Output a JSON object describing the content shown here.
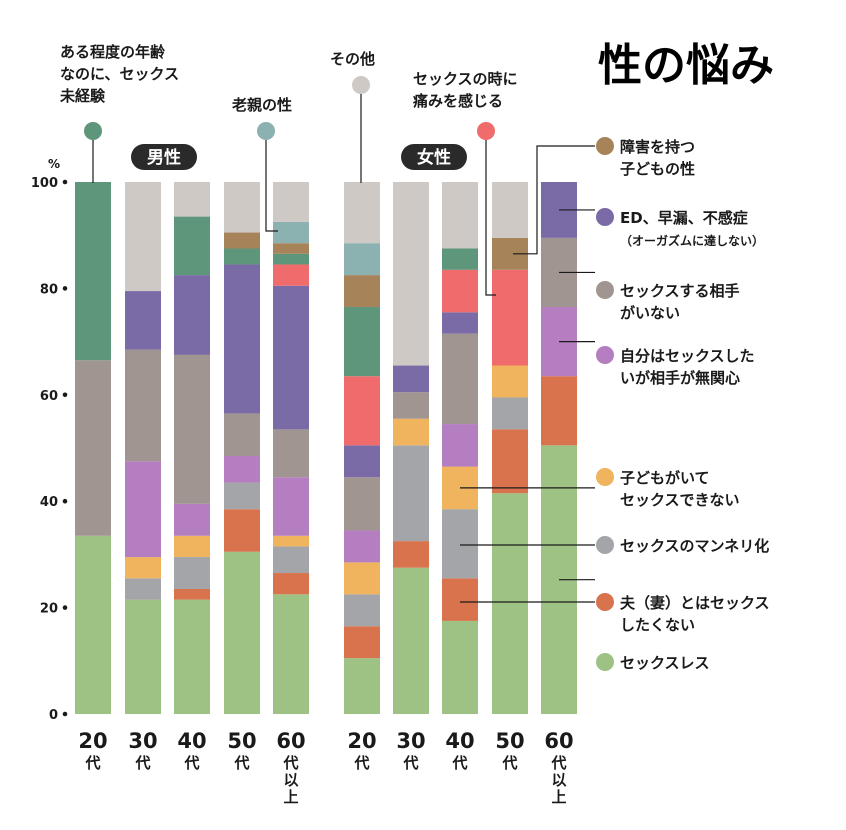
{
  "chart_data": {
    "type": "stacked-bar",
    "title": "性の悩み",
    "ylabel": "%",
    "ylim": [
      0,
      100
    ],
    "yticks": [
      "0",
      "20",
      "40",
      "60",
      "80",
      "100"
    ],
    "groups": [
      {
        "name": "男性",
        "categories": [
          "20代",
          "30代",
          "40代",
          "50代",
          "60代以上"
        ]
      },
      {
        "name": "女性",
        "categories": [
          "20代",
          "30代",
          "40代",
          "50代",
          "60代以上"
        ]
      }
    ],
    "category_labels": [
      {
        "top": "20",
        "bottom": "代"
      },
      {
        "top": "30",
        "bottom": "代"
      },
      {
        "top": "40",
        "bottom": "代"
      },
      {
        "top": "50",
        "bottom": "代"
      },
      {
        "top": "60",
        "bottom": "代以上"
      },
      {
        "top": "20",
        "bottom": "代"
      },
      {
        "top": "30",
        "bottom": "代"
      },
      {
        "top": "40",
        "bottom": "代"
      },
      {
        "top": "50",
        "bottom": "代"
      },
      {
        "top": "60",
        "bottom": "代以上"
      }
    ],
    "series": [
      {
        "name": "セックスレス",
        "color": "#9ec184",
        "values": [
          33.5,
          21.5,
          21.5,
          30.5,
          22.5,
          10.5,
          27.5,
          17.5,
          41.5,
          50.5
        ]
      },
      {
        "name": "夫(妻)とはセックスしたくない",
        "color": "#d8734e",
        "values": [
          0,
          0,
          2,
          8,
          4,
          6,
          5,
          8,
          12,
          13
        ]
      },
      {
        "name": "セックスのマンネリ化",
        "color": "#a3a5a8",
        "values": [
          0,
          4,
          6,
          5,
          5,
          6,
          18,
          13,
          6,
          0
        ]
      },
      {
        "name": "子どもがいてセックスできない",
        "color": "#f0b35e",
        "values": [
          0,
          4,
          4,
          0,
          2,
          6,
          5,
          8,
          6,
          0
        ]
      },
      {
        "name": "自分はセックスしたいが相手が無関心",
        "color": "#b47ec0",
        "values": [
          0,
          18,
          6,
          5,
          11,
          6,
          0,
          8,
          0,
          13
        ]
      },
      {
        "name": "セックスする相手がいない",
        "color": "#a09590",
        "values": [
          33,
          21,
          28,
          8,
          9,
          10,
          5,
          17,
          0,
          13
        ]
      },
      {
        "name": "ED、早漏、不感症(オーガズムに達しない)",
        "color": "#7a6aa6",
        "values": [
          0,
          11,
          15,
          28,
          27,
          6,
          5,
          4,
          0,
          10.5
        ]
      },
      {
        "name": "セックスの時に痛みを感じる",
        "color": "#f06b6b",
        "values": [
          0,
          0,
          0,
          0,
          4,
          13,
          0,
          8,
          18,
          0
        ]
      },
      {
        "name": "ある程度の年齢なのに、セックス未経験",
        "color": "#5d967b",
        "values": [
          33.5,
          0,
          11,
          3,
          2,
          13,
          0,
          4,
          0,
          0
        ]
      },
      {
        "name": "障害を持つ子どもの性",
        "color": "#a7835a",
        "values": [
          0,
          0,
          0,
          3,
          2,
          6,
          0,
          0,
          6,
          0
        ]
      },
      {
        "name": "老親の性",
        "color": "#8bb1b0",
        "values": [
          0,
          0,
          0,
          0,
          4,
          6,
          0,
          0,
          0,
          0
        ]
      },
      {
        "name": "その他",
        "color": "#cfc9c6",
        "values": [
          0,
          20.5,
          6.5,
          9.5,
          7.5,
          11.5,
          34.5,
          12.5,
          10.5,
          0
        ]
      }
    ],
    "legend": {
      "placement": "right",
      "items": [
        {
          "lines": [
            "障害を持つ",
            "子どもの性"
          ]
        },
        {
          "lines": [
            "ED、早漏、不感症"
          ],
          "sub": "（オーガズムに達しない）"
        },
        {
          "lines": [
            "セックスする相手",
            "がいない"
          ]
        },
        {
          "lines": [
            "自分はセックスした",
            "いが相手が無関心"
          ]
        },
        {
          "lines": [
            "子どもがいて",
            "セックスできない"
          ]
        },
        {
          "lines": [
            "セックスのマンネリ化"
          ]
        },
        {
          "lines": [
            "夫（妻）とはセックス",
            "したくない"
          ]
        },
        {
          "lines": [
            "セックスレス"
          ]
        }
      ]
    },
    "top_annotations": [
      {
        "lines": [
          "ある程度の年齢",
          "なのに、セックス",
          "未経験"
        ]
      },
      {
        "lines": [
          "老親の性"
        ]
      },
      {
        "lines": [
          "その他"
        ]
      },
      {
        "lines": [
          "セックスの時に",
          "痛みを感じる"
        ]
      }
    ]
  }
}
